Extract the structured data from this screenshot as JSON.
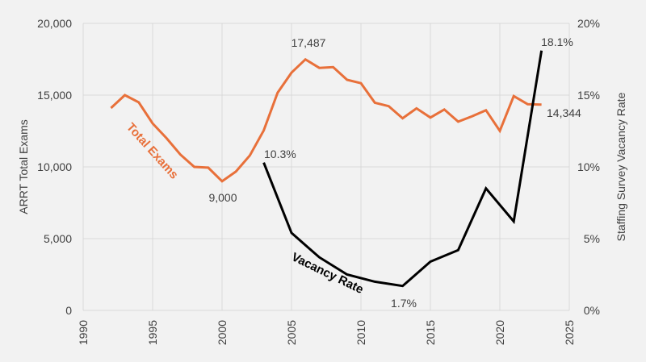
{
  "chart_data": {
    "type": "line",
    "title": "",
    "xlabel": "",
    "ylabel": "ARRT Total Exams",
    "y2label": "Staffing Survey Vacancy Rate",
    "xlim": [
      1990,
      2025
    ],
    "ylim": [
      0,
      20000
    ],
    "y2lim": [
      0,
      20
    ],
    "grid": true,
    "x_ticks": [
      "1990",
      "1995",
      "2000",
      "2005",
      "2010",
      "2015",
      "2020",
      "2025"
    ],
    "y_ticks": [
      "0",
      "5,000",
      "10,000",
      "15,000",
      "20,000"
    ],
    "y2_ticks": [
      "0%",
      "5%",
      "10%",
      "15%",
      "20%"
    ],
    "colors": {
      "exams": "#e8703a",
      "vacancy": "#000000",
      "background": "#f2f2f2",
      "grid": "#d9d9d9"
    },
    "series": [
      {
        "name": "Total Exams",
        "axis": "left",
        "x": [
          1992,
          1993,
          1994,
          1995,
          1996,
          1997,
          1998,
          1999,
          2000,
          2001,
          2002,
          2003,
          2004,
          2005,
          2006,
          2007,
          2008,
          2009,
          2010,
          2011,
          2012,
          2013,
          2014,
          2015,
          2016,
          2017,
          2018,
          2019,
          2020,
          2021,
          2022,
          2023
        ],
        "values": [
          14100,
          15000,
          14500,
          13030,
          12000,
          10860,
          10000,
          9950,
          9000,
          9680,
          10800,
          12540,
          15170,
          16570,
          17487,
          16900,
          16950,
          16070,
          15830,
          14470,
          14230,
          13390,
          14080,
          13440,
          14000,
          13150,
          13520,
          13950,
          12510,
          14930,
          14370,
          14344
        ]
      },
      {
        "name": "Vacancy Rate",
        "axis": "right",
        "x": [
          2003,
          2005,
          2007,
          2009,
          2011,
          2013,
          2015,
          2017,
          2019,
          2021,
          2023
        ],
        "values": [
          10.3,
          5.4,
          3.7,
          2.5,
          2.0,
          1.7,
          3.4,
          4.2,
          8.5,
          6.2,
          18.1
        ]
      }
    ],
    "annotations": {
      "exams_min": "9,000",
      "exams_max": "17,487",
      "exams_last": "14,344",
      "vacancy_first": "10.3%",
      "vacancy_min": "1.7%",
      "vacancy_last": "18.1%"
    }
  }
}
